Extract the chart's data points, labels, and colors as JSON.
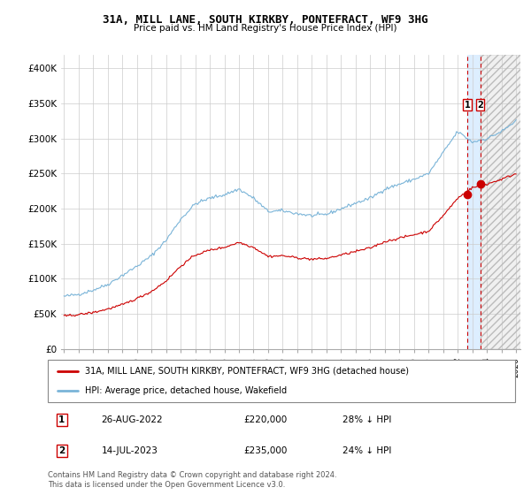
{
  "title": "31A, MILL LANE, SOUTH KIRKBY, PONTEFRACT, WF9 3HG",
  "subtitle": "Price paid vs. HM Land Registry's House Price Index (HPI)",
  "ylabel_ticks": [
    "£0",
    "£50K",
    "£100K",
    "£150K",
    "£200K",
    "£250K",
    "£300K",
    "£350K",
    "£400K"
  ],
  "ytick_values": [
    0,
    50000,
    100000,
    150000,
    200000,
    250000,
    300000,
    350000,
    400000
  ],
  "ylim": [
    0,
    420000
  ],
  "hpi_color": "#7ab4d8",
  "price_color": "#cc0000",
  "vline_color": "#cc0000",
  "shade_between_color": "#ddeeff",
  "shade_after_color": "#f0f0f0",
  "grid_color": "#cccccc",
  "legend_label_price": "31A, MILL LANE, SOUTH KIRKBY, PONTEFRACT, WF9 3HG (detached house)",
  "legend_label_hpi": "HPI: Average price, detached house, Wakefield",
  "annotation1_label": "1",
  "annotation1_date": "26-AUG-2022",
  "annotation1_price": "£220,000",
  "annotation1_pct": "28% ↓ HPI",
  "annotation2_label": "2",
  "annotation2_date": "14-JUL-2023",
  "annotation2_price": "£235,000",
  "annotation2_pct": "24% ↓ HPI",
  "footnote": "Contains HM Land Registry data © Crown copyright and database right 2024.\nThis data is licensed under the Open Government Licence v3.0.",
  "sale1_x": 2022.65,
  "sale1_y": 220000,
  "sale2_x": 2023.54,
  "sale2_y": 235000,
  "xmin": 1995,
  "xmax": 2026
}
